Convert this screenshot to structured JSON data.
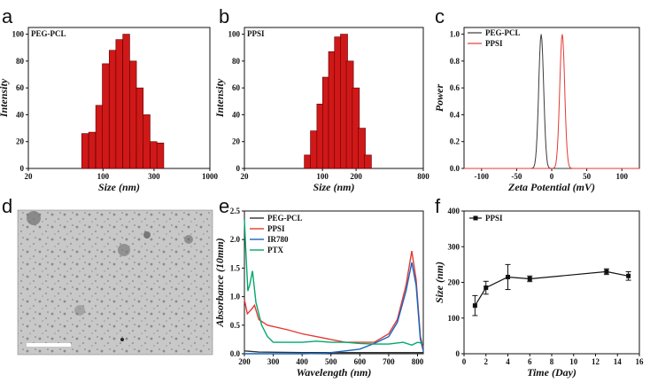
{
  "panel_labels": [
    "a",
    "b",
    "c",
    "d",
    "e",
    "f"
  ],
  "chart_data": [
    {
      "id": "a",
      "type": "bar",
      "title": "PEG-PCL",
      "xlabel": "Size (nm)",
      "ylabel": "Intensity",
      "xscale": "log",
      "xlim": [
        20,
        1000
      ],
      "ylim": [
        0,
        105
      ],
      "xticks": [
        20,
        100,
        300,
        1000
      ],
      "yticks": [
        0,
        20,
        40,
        60,
        80,
        100
      ],
      "bins": [
        [
          68,
          26
        ],
        [
          79,
          7
        ],
        [
          79,
          27
        ],
        [
          92,
          7
        ],
        [
          92,
          47
        ],
        [
          106,
          7
        ],
        [
          106,
          78
        ],
        [
          123,
          8
        ],
        [
          123,
          88
        ],
        [
          142,
          8
        ],
        [
          142,
          96
        ],
        [
          165,
          9
        ],
        [
          165,
          100
        ],
        [
          191,
          10
        ],
        [
          191,
          80
        ],
        [
          221,
          12
        ],
        [
          221,
          60
        ],
        [
          256,
          14
        ],
        [
          256,
          40
        ],
        [
          297,
          16
        ],
        [
          297,
          20
        ],
        [
          344,
          19
        ]
      ]
    },
    {
      "id": "b",
      "type": "bar",
      "title": "PPSI",
      "xlabel": "Size (nm)",
      "ylabel": "Intensity",
      "xscale": "log",
      "xlim": [
        20,
        800
      ],
      "ylim": [
        0,
        105
      ],
      "xticks": [
        20,
        100,
        200,
        800
      ],
      "yticks": [
        0,
        20,
        40,
        60,
        80,
        100
      ],
      "bins": [
        [
          74,
          10
        ],
        [
          84,
          28
        ],
        [
          96,
          48
        ],
        [
          108,
          68
        ],
        [
          122,
          87
        ],
        [
          138,
          98
        ],
        [
          156,
          100
        ],
        [
          176,
          80
        ],
        [
          199,
          60
        ],
        [
          225,
          30
        ],
        [
          255,
          10
        ]
      ]
    },
    {
      "id": "c",
      "type": "line",
      "xlabel": "Zeta Potential (mV)",
      "ylabel": "Power",
      "xlim": [
        -125,
        125
      ],
      "ylim": [
        0,
        1.05
      ],
      "xticks": [
        -100,
        -50,
        0,
        50,
        100
      ],
      "yticks": [
        0.0,
        0.2,
        0.4,
        0.6,
        0.8,
        1.0
      ],
      "series": [
        {
          "name": "PEG-PCL",
          "color": "#3a3a3a",
          "center": -15,
          "width": 5
        },
        {
          "name": "PPSI",
          "color": "#e53935",
          "center": 15,
          "width": 5
        }
      ]
    },
    {
      "id": "e",
      "type": "line",
      "xlabel": "Wavelength (nm)",
      "ylabel": "Absorbance (10mm)",
      "xlim": [
        200,
        820
      ],
      "ylim": [
        0,
        2.5
      ],
      "xticks": [
        200,
        300,
        400,
        500,
        600,
        700,
        800
      ],
      "yticks": [
        0.0,
        0.5,
        1.0,
        1.5,
        2.0,
        2.5
      ],
      "series": [
        {
          "name": "PEG-PCL",
          "color": "#333333",
          "points": [
            [
              200,
              0.05
            ],
            [
              250,
              0.03
            ],
            [
              400,
              0.02
            ],
            [
              600,
              0.02
            ],
            [
              800,
              0.02
            ],
            [
              820,
              0.02
            ]
          ]
        },
        {
          "name": "PPSI",
          "color": "#e53935",
          "points": [
            [
              200,
              0.95
            ],
            [
              210,
              0.7
            ],
            [
              225,
              0.78
            ],
            [
              235,
              0.85
            ],
            [
              250,
              0.6
            ],
            [
              280,
              0.5
            ],
            [
              350,
              0.42
            ],
            [
              400,
              0.35
            ],
            [
              450,
              0.3
            ],
            [
              500,
              0.25
            ],
            [
              550,
              0.2
            ],
            [
              600,
              0.2
            ],
            [
              650,
              0.2
            ],
            [
              700,
              0.35
            ],
            [
              730,
              0.6
            ],
            [
              760,
              1.2
            ],
            [
              780,
              1.8
            ],
            [
              795,
              1.3
            ],
            [
              810,
              0.3
            ],
            [
              820,
              0.1
            ]
          ]
        },
        {
          "name": "IR780",
          "color": "#1565c0",
          "points": [
            [
              200,
              0.0
            ],
            [
              400,
              0.0
            ],
            [
              480,
              0.01
            ],
            [
              550,
              0.05
            ],
            [
              600,
              0.08
            ],
            [
              650,
              0.18
            ],
            [
              700,
              0.3
            ],
            [
              730,
              0.55
            ],
            [
              760,
              1.1
            ],
            [
              780,
              1.6
            ],
            [
              795,
              1.2
            ],
            [
              810,
              0.25
            ],
            [
              820,
              0.05
            ]
          ]
        },
        {
          "name": "PTX",
          "color": "#00a86b",
          "points": [
            [
              200,
              2.35
            ],
            [
              205,
              1.8
            ],
            [
              212,
              1.1
            ],
            [
              218,
              1.2
            ],
            [
              228,
              1.45
            ],
            [
              240,
              0.9
            ],
            [
              260,
              0.5
            ],
            [
              280,
              0.3
            ],
            [
              300,
              0.2
            ],
            [
              350,
              0.2
            ],
            [
              400,
              0.2
            ],
            [
              450,
              0.22
            ],
            [
              500,
              0.2
            ],
            [
              550,
              0.2
            ],
            [
              600,
              0.18
            ],
            [
              650,
              0.17
            ],
            [
              700,
              0.17
            ],
            [
              750,
              0.2
            ],
            [
              780,
              0.15
            ],
            [
              800,
              0.2
            ],
            [
              820,
              0.18
            ]
          ]
        }
      ]
    },
    {
      "id": "f",
      "type": "line",
      "xlabel": "Time (Day)",
      "ylabel": "Size (nm)",
      "xlim": [
        0,
        16
      ],
      "ylim": [
        0,
        400
      ],
      "xticks": [
        0,
        2,
        4,
        6,
        8,
        10,
        12,
        14,
        16
      ],
      "yticks": [
        0,
        100,
        200,
        300,
        400
      ],
      "series": [
        {
          "name": "PPSI",
          "color": "#111111",
          "x": [
            1,
            2,
            4,
            6,
            13,
            15
          ],
          "y": [
            135,
            185,
            215,
            210,
            230,
            218
          ],
          "err": [
            28,
            18,
            35,
            8,
            8,
            12
          ]
        }
      ]
    }
  ]
}
